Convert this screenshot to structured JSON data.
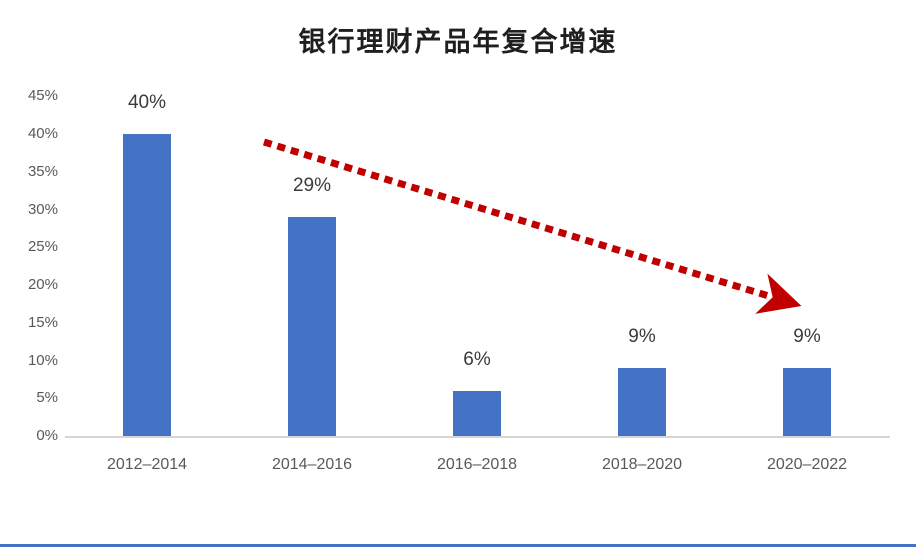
{
  "page": {
    "background_color": "#FFFFFF",
    "bottom_accent_color": "#4472C4"
  },
  "chart_data": {
    "type": "bar",
    "title": "银行理财产品年复合增速",
    "categories": [
      "2012–2014",
      "2014–2016",
      "2016–2018",
      "2018–2020",
      "2020–2022"
    ],
    "values": [
      40,
      29,
      6,
      9,
      9
    ],
    "data_labels": [
      "40%",
      "29%",
      "6%",
      "9%",
      "9%"
    ],
    "y_ticks": [
      "0%",
      "5%",
      "10%",
      "15%",
      "20%",
      "25%",
      "30%",
      "35%",
      "40%",
      "45%"
    ],
    "y_tick_values": [
      0,
      5,
      10,
      15,
      20,
      25,
      30,
      35,
      40,
      45
    ],
    "ylim": [
      0,
      45
    ],
    "xlabel": "",
    "ylabel": "",
    "grid": false,
    "legend": "none",
    "bar_color": "#4472C4",
    "axis_line_color": "#D6D6D6",
    "tick_label_color": "#595959",
    "data_label_color": "#3B3B3B",
    "annotation": {
      "type": "arrow",
      "style": "dotted",
      "color": "#C00000",
      "description": "downward trend arrow from upper-left to lower-right"
    }
  }
}
